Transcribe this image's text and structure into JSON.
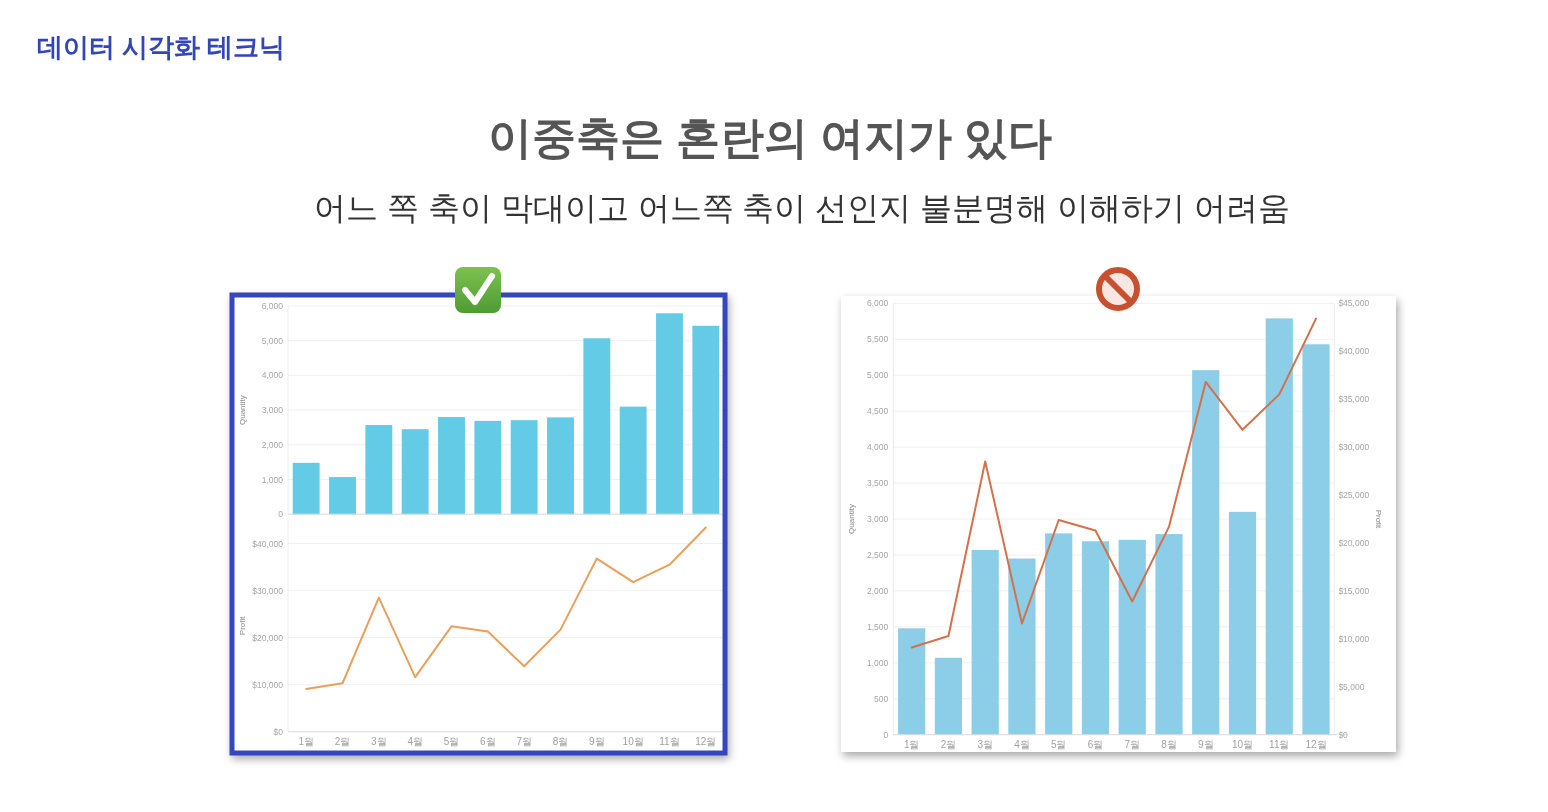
{
  "chart_data": [
    {
      "type": "other",
      "title": "이중축은 혼란의 여지가 있다",
      "subtitle": "어느 쪽 축이 막대이고 어느쪽 축이 선인지 불분명해 이해하기 어려움",
      "annotations": [
        "데이터 시각화 테크닉"
      ]
    },
    {
      "type": "bar",
      "categories": [
        null,
        null,
        null,
        null,
        null,
        null,
        null,
        null,
        null,
        null,
        null,
        null
      ],
      "values": [
        1480,
        1070,
        2570,
        2450,
        2800,
        2690,
        2710,
        2790,
        5070,
        3100,
        5790,
        5430
      ],
      "color": "#63cbe5",
      "ylabel": "Quantity",
      "ylim": [
        0,
        6000
      ],
      "yticks": [
        {
          "value": 0,
          "label": "0"
        },
        {
          "value": 1000,
          "label": "1,000"
        },
        {
          "value": 2000,
          "label": "2,000"
        },
        {
          "value": 3000,
          "label": "3,000"
        },
        {
          "value": 4000,
          "label": "4,000"
        },
        {
          "value": 5000,
          "label": "5,000"
        },
        {
          "value": 6000,
          "label": "6,000"
        }
      ],
      "grid": "y",
      "tick_labels": "y"
    },
    {
      "type": "line",
      "categories": [
        "1월",
        "2월",
        "3월",
        "4월",
        "5월",
        "6월",
        "7월",
        "8월",
        "9월",
        "10월",
        "11월",
        "12월"
      ],
      "values": [
        9100,
        10300,
        28500,
        11600,
        22400,
        21300,
        13900,
        21700,
        36800,
        31800,
        35500,
        43400
      ],
      "color": "#e9a05c",
      "ylabel": "Profit",
      "ylim": [
        0,
        45000
      ],
      "yticks": [
        {
          "value": 0,
          "label": "$0"
        },
        {
          "value": 10000,
          "label": "$10,000"
        },
        {
          "value": 20000,
          "label": "$20,000"
        },
        {
          "value": 30000,
          "label": "$30,000"
        },
        {
          "value": 40000,
          "label": "$40,000"
        }
      ],
      "grid": "y"
    },
    {
      "type": "bar",
      "categories": [
        "1월",
        "2월",
        "3월",
        "4월",
        "5월",
        "6월",
        "7월",
        "8월",
        "9월",
        "10월",
        "11월",
        "12월"
      ],
      "series": [
        {
          "color": "#8ccde8",
          "values": [
            1480,
            1070,
            2570,
            2450,
            2800,
            2690,
            2710,
            2790,
            5070,
            3100,
            5790,
            5430
          ]
        },
        {
          "type": "line",
          "axis": "y2",
          "color": "#d4714a",
          "values": [
            9100,
            10300,
            28500,
            11600,
            22400,
            21300,
            13900,
            21700,
            36800,
            31800,
            35500,
            43400
          ]
        }
      ],
      "ylabel": "Quantity",
      "y2label": "Profit",
      "ylim": [
        0,
        6000
      ],
      "yticks": [
        {
          "value": 0,
          "label": "0"
        },
        {
          "value": 500,
          "label": "500"
        },
        {
          "value": 1000,
          "label": "1,000"
        },
        {
          "value": 1500,
          "label": "1,500"
        },
        {
          "value": 2000,
          "label": "2,000"
        },
        {
          "value": 2500,
          "label": "2,500"
        },
        {
          "value": 3000,
          "label": "3,000"
        },
        {
          "value": 3500,
          "label": "3,500"
        },
        {
          "value": 4000,
          "label": "4,000"
        },
        {
          "value": 4500,
          "label": "4,500"
        },
        {
          "value": 5000,
          "label": "5,000"
        },
        {
          "value": 5500,
          "label": "5,500"
        },
        {
          "value": 6000,
          "label": "6,000"
        }
      ],
      "y2lim": [
        0,
        45000
      ],
      "y2ticks": [
        {
          "value": 0,
          "label": "$0"
        },
        {
          "value": 5000,
          "label": "$5,000"
        },
        {
          "value": 10000,
          "label": "$10,000"
        },
        {
          "value": 15000,
          "label": "$15,000"
        },
        {
          "value": 20000,
          "label": "$20,000"
        },
        {
          "value": 25000,
          "label": "$25,000"
        },
        {
          "value": 30000,
          "label": "$30,000"
        },
        {
          "value": 35000,
          "label": "$35,000"
        },
        {
          "value": 40000,
          "label": "$40,000"
        },
        {
          "value": 45000,
          "label": "$45,000"
        }
      ],
      "grid": "y"
    }
  ]
}
